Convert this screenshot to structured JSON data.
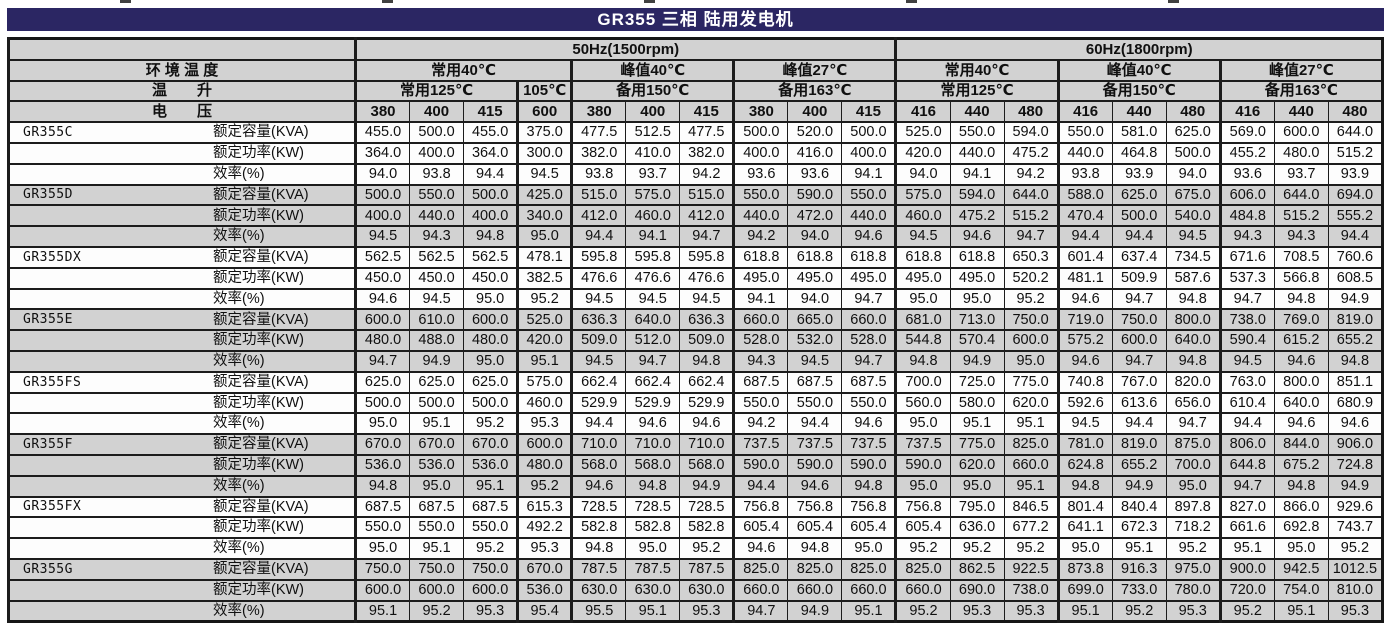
{
  "title": "GR355 三相 陆用发电机",
  "colors": {
    "title_bg": "#2b2663",
    "title_text": "#ffffff",
    "header_bg": "#d2d2d2",
    "shaded_row_bg": "#d2d2d2",
    "plain_row_bg": "#fdfdfd",
    "border": "#1c1c1c"
  },
  "header": {
    "frequency_groups": [
      {
        "label": "50Hz(1500rpm)",
        "span": 10
      },
      {
        "label": "60Hz(1800rpm)",
        "span": 9
      }
    ],
    "ambient_label": "环 境 温 度",
    "ambient_groups": [
      {
        "label": "常用40℃",
        "span": 4
      },
      {
        "label": "峰值40℃",
        "span": 3
      },
      {
        "label": "峰值27℃",
        "span": 3
      },
      {
        "label": "常用40℃",
        "span": 3
      },
      {
        "label": "峰值40℃",
        "span": 3
      },
      {
        "label": "峰值27℃",
        "span": 3
      }
    ],
    "rise_label": "温　　升",
    "rise_groups": [
      {
        "label": "常用125℃",
        "span": 3
      },
      {
        "label": "105℃",
        "span": 1
      },
      {
        "label": "备用150℃",
        "span": 3
      },
      {
        "label": "备用163℃",
        "span": 3
      },
      {
        "label": "常用125℃",
        "span": 3
      },
      {
        "label": "备用150℃",
        "span": 3
      },
      {
        "label": "备用163℃",
        "span": 3
      }
    ],
    "voltage_label": "电　　压",
    "voltages": [
      "380",
      "400",
      "415",
      "600",
      "380",
      "400",
      "415",
      "380",
      "400",
      "415",
      "416",
      "440",
      "480",
      "416",
      "440",
      "480",
      "416",
      "440",
      "480"
    ]
  },
  "metrics": [
    "额定容量(KVA)",
    "额定功率(KW)",
    "效率(%)"
  ],
  "models": [
    {
      "name": "GR355C",
      "shaded": false,
      "kva": [
        455.0,
        500.0,
        455.0,
        375.0,
        477.5,
        512.5,
        477.5,
        500.0,
        520.0,
        500.0,
        525.0,
        550.0,
        594.0,
        550.0,
        581.0,
        625.0,
        569.0,
        600.0,
        644.0
      ],
      "kw": [
        364.0,
        400.0,
        364.0,
        300.0,
        382.0,
        410.0,
        382.0,
        400.0,
        416.0,
        400.0,
        420.0,
        440.0,
        475.2,
        440.0,
        464.8,
        500.0,
        455.2,
        480.0,
        515.2
      ],
      "eff": [
        94.0,
        93.8,
        94.4,
        94.5,
        93.8,
        93.7,
        94.2,
        93.6,
        93.6,
        94.1,
        94.0,
        94.1,
        94.2,
        93.8,
        93.9,
        94.0,
        93.6,
        93.7,
        93.9
      ]
    },
    {
      "name": "GR355D",
      "shaded": true,
      "kva": [
        500.0,
        550.0,
        500.0,
        425.0,
        515.0,
        575.0,
        515.0,
        550.0,
        590.0,
        550.0,
        575.0,
        594.0,
        644.0,
        588.0,
        625.0,
        675.0,
        606.0,
        644.0,
        694.0
      ],
      "kw": [
        400.0,
        440.0,
        400.0,
        340.0,
        412.0,
        460.0,
        412.0,
        440.0,
        472.0,
        440.0,
        460.0,
        475.2,
        515.2,
        470.4,
        500.0,
        540.0,
        484.8,
        515.2,
        555.2
      ],
      "eff": [
        94.5,
        94.3,
        94.8,
        95.0,
        94.4,
        94.1,
        94.7,
        94.2,
        94.0,
        94.6,
        94.5,
        94.6,
        94.7,
        94.4,
        94.4,
        94.5,
        94.3,
        94.3,
        94.4
      ]
    },
    {
      "name": "GR355DX",
      "shaded": false,
      "kva": [
        562.5,
        562.5,
        562.5,
        478.1,
        595.8,
        595.8,
        595.8,
        618.8,
        618.8,
        618.8,
        618.8,
        618.8,
        650.3,
        601.4,
        637.4,
        734.5,
        671.6,
        708.5,
        760.6
      ],
      "kw": [
        450.0,
        450.0,
        450.0,
        382.5,
        476.6,
        476.6,
        476.6,
        495.0,
        495.0,
        495.0,
        495.0,
        495.0,
        520.2,
        481.1,
        509.9,
        587.6,
        537.3,
        566.8,
        608.5
      ],
      "eff": [
        94.6,
        94.5,
        95.0,
        95.2,
        94.5,
        94.5,
        94.5,
        94.1,
        94.0,
        94.7,
        95.0,
        95.0,
        95.2,
        94.6,
        94.7,
        94.8,
        94.7,
        94.8,
        94.9
      ]
    },
    {
      "name": "GR355E",
      "shaded": true,
      "kva": [
        600.0,
        610.0,
        600.0,
        525.0,
        636.3,
        640.0,
        636.3,
        660.0,
        665.0,
        660.0,
        681.0,
        713.0,
        750.0,
        719.0,
        750.0,
        800.0,
        738.0,
        769.0,
        819.0
      ],
      "kw": [
        480.0,
        488.0,
        480.0,
        420.0,
        509.0,
        512.0,
        509.0,
        528.0,
        532.0,
        528.0,
        544.8,
        570.4,
        600.0,
        575.2,
        600.0,
        640.0,
        590.4,
        615.2,
        655.2
      ],
      "eff": [
        94.7,
        94.9,
        95.0,
        95.1,
        94.5,
        94.7,
        94.8,
        94.3,
        94.5,
        94.7,
        94.8,
        94.9,
        95.0,
        94.6,
        94.7,
        94.8,
        94.5,
        94.6,
        94.8
      ]
    },
    {
      "name": "GR355FS",
      "shaded": false,
      "kva": [
        625.0,
        625.0,
        625.0,
        575.0,
        662.4,
        662.4,
        662.4,
        687.5,
        687.5,
        687.5,
        700.0,
        725.0,
        775.0,
        740.8,
        767.0,
        820.0,
        763.0,
        800.0,
        851.1
      ],
      "kw": [
        500.0,
        500.0,
        500.0,
        460.0,
        529.9,
        529.9,
        529.9,
        550.0,
        550.0,
        550.0,
        560.0,
        580.0,
        620.0,
        592.6,
        613.6,
        656.0,
        610.4,
        640.0,
        680.9
      ],
      "eff": [
        95.0,
        95.1,
        95.2,
        95.3,
        94.4,
        94.6,
        94.6,
        94.2,
        94.4,
        94.6,
        95.0,
        95.1,
        95.1,
        94.5,
        94.4,
        94.7,
        94.4,
        94.6,
        94.6
      ]
    },
    {
      "name": "GR355F",
      "shaded": true,
      "kva": [
        670.0,
        670.0,
        670.0,
        600.0,
        710.0,
        710.0,
        710.0,
        737.5,
        737.5,
        737.5,
        737.5,
        775.0,
        825.0,
        781.0,
        819.0,
        875.0,
        806.0,
        844.0,
        906.0
      ],
      "kw": [
        536.0,
        536.0,
        536.0,
        480.0,
        568.0,
        568.0,
        568.0,
        590.0,
        590.0,
        590.0,
        590.0,
        620.0,
        660.0,
        624.8,
        655.2,
        700.0,
        644.8,
        675.2,
        724.8
      ],
      "eff": [
        94.8,
        95.0,
        95.1,
        95.2,
        94.6,
        94.8,
        94.9,
        94.4,
        94.6,
        94.8,
        95.0,
        95.0,
        95.1,
        94.8,
        94.9,
        95.0,
        94.7,
        94.8,
        94.9
      ]
    },
    {
      "name": "GR355FX",
      "shaded": false,
      "kva": [
        687.5,
        687.5,
        687.5,
        615.3,
        728.5,
        728.5,
        728.5,
        756.8,
        756.8,
        756.8,
        756.8,
        795.0,
        846.5,
        801.4,
        840.4,
        897.8,
        827.0,
        866.0,
        929.6
      ],
      "kw": [
        550.0,
        550.0,
        550.0,
        492.2,
        582.8,
        582.8,
        582.8,
        605.4,
        605.4,
        605.4,
        605.4,
        636.0,
        677.2,
        641.1,
        672.3,
        718.2,
        661.6,
        692.8,
        743.7
      ],
      "eff": [
        95.0,
        95.1,
        95.2,
        95.3,
        94.8,
        95.0,
        95.2,
        94.6,
        94.8,
        95.0,
        95.2,
        95.2,
        95.2,
        95.0,
        95.1,
        95.2,
        95.1,
        95.0,
        95.2
      ]
    },
    {
      "name": "GR355G",
      "shaded": true,
      "kva": [
        750.0,
        750.0,
        750.0,
        670.0,
        787.5,
        787.5,
        787.5,
        825.0,
        825.0,
        825.0,
        825.0,
        862.5,
        922.5,
        873.8,
        916.3,
        975.0,
        900.0,
        942.5,
        1012.5
      ],
      "kw": [
        600.0,
        600.0,
        600.0,
        536.0,
        630.0,
        630.0,
        630.0,
        660.0,
        660.0,
        660.0,
        660.0,
        690.0,
        738.0,
        699.0,
        733.0,
        780.0,
        720.0,
        754.0,
        810.0
      ],
      "eff": [
        95.1,
        95.2,
        95.3,
        95.4,
        95.5,
        95.1,
        95.3,
        94.7,
        94.9,
        95.1,
        95.2,
        95.3,
        95.3,
        95.1,
        95.2,
        95.3,
        95.2,
        95.1,
        95.3
      ]
    }
  ]
}
